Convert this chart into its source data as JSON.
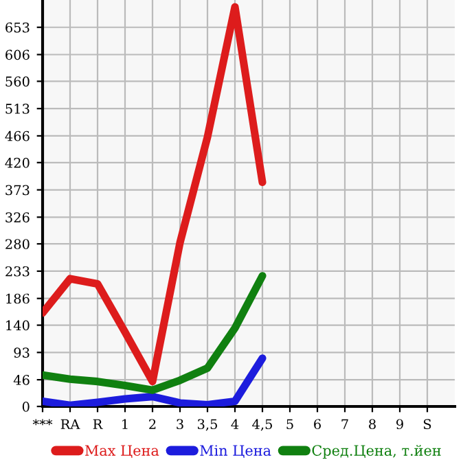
{
  "chart_data": {
    "type": "line",
    "categories": [
      "***",
      "RA",
      "R",
      "1",
      "2",
      "3",
      "3,5",
      "4",
      "4,5",
      "5",
      "6",
      "7",
      "8",
      "9",
      "S"
    ],
    "series": [
      {
        "name": "Max Цена",
        "color": "#dd1c1c",
        "values": [
          161,
          220,
          211,
          128,
          43,
          282,
          464,
          688,
          386,
          null,
          null,
          null,
          null,
          null,
          null
        ]
      },
      {
        "name": "Min Цена",
        "color": "#1c1cdd",
        "values": [
          9,
          2,
          7,
          13,
          17,
          6,
          3,
          9,
          83,
          null,
          null,
          null,
          null,
          null,
          null
        ]
      },
      {
        "name": "Сред.Цена, т.йен",
        "color": "#108010",
        "values": [
          54,
          47,
          43,
          36,
          28,
          45,
          66,
          135,
          225,
          null,
          null,
          null,
          null,
          null,
          null
        ]
      }
    ],
    "ylim": [
      0,
      700
    ],
    "yticks": [
      0,
      46,
      93,
      140,
      186,
      233,
      280,
      326,
      373,
      420,
      466,
      513,
      560,
      606,
      653
    ],
    "grid": true,
    "legend": "bottom",
    "marker": "none",
    "line_style": "solid"
  }
}
